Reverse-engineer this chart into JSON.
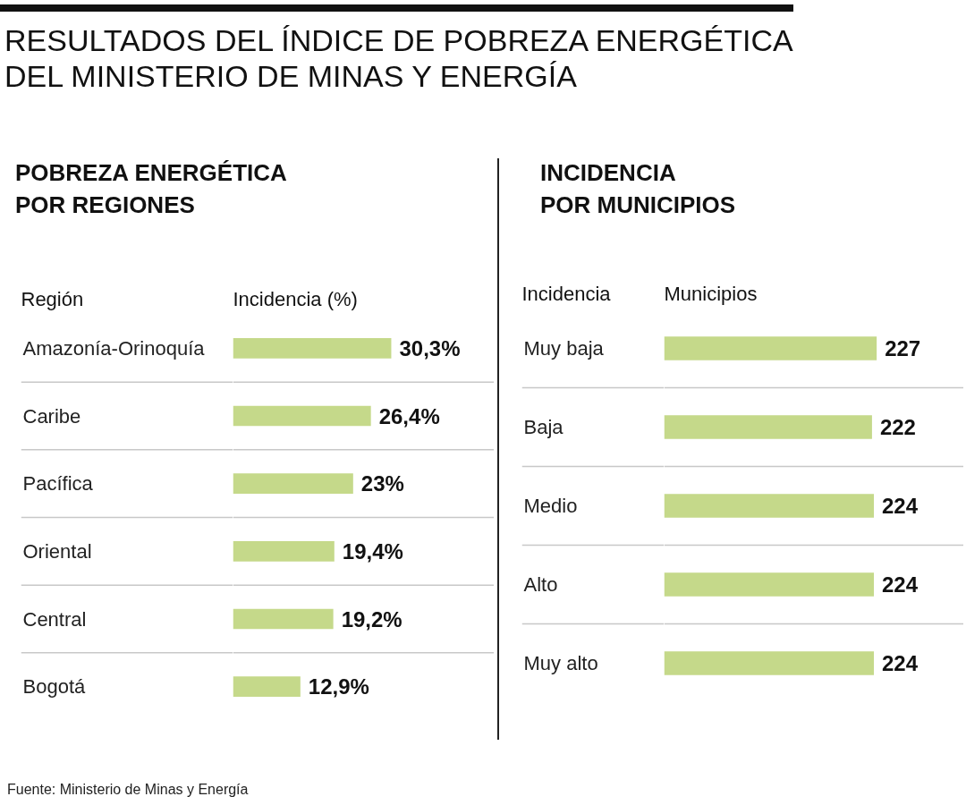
{
  "chart_data": [
    {
      "type": "bar",
      "orientation": "horizontal",
      "title": "RESULTADOS DEL ÍNDICE DE POBREZA ENERGÉTICA\nDEL MINISTERIO DE MINAS Y ENERGÍA",
      "subtitle": "POBREZA ENERGÉTICA\nPOR REGIONES",
      "ylabel": "Región",
      "xlabel": "Incidencia (%)",
      "categories": [
        "Amazonía-Orinoquía",
        "Caribe",
        "Pacífica",
        "Oriental",
        "Central",
        "Bogotá"
      ],
      "values": [
        30.3,
        26.4,
        23,
        19.4,
        19.2,
        12.9
      ],
      "value_labels": [
        "30,3%",
        "26,4%",
        "23%",
        "19,4%",
        "19,2%",
        "12,9%"
      ],
      "color": "#c5d98a",
      "xlim": [
        0,
        50
      ],
      "grid": "y",
      "tick_labels": "y",
      "annotations": [
        "Fuente: Ministerio de Minas y Energía"
      ]
    },
    {
      "type": "bar",
      "orientation": "horizontal",
      "title": "INCIDENCIA\nPOR MUNICIPIOS",
      "ylabel": "Incidencia",
      "xlabel": "Municipios",
      "categories": [
        "Muy baja",
        "Baja",
        "Medio",
        "Alto",
        "Muy alto"
      ],
      "values": [
        227,
        222,
        224,
        224,
        224
      ],
      "data_labels": true,
      "color": "#c5d98a",
      "xlim": [
        0,
        320
      ],
      "grid": "y",
      "tick_labels": "y"
    }
  ]
}
